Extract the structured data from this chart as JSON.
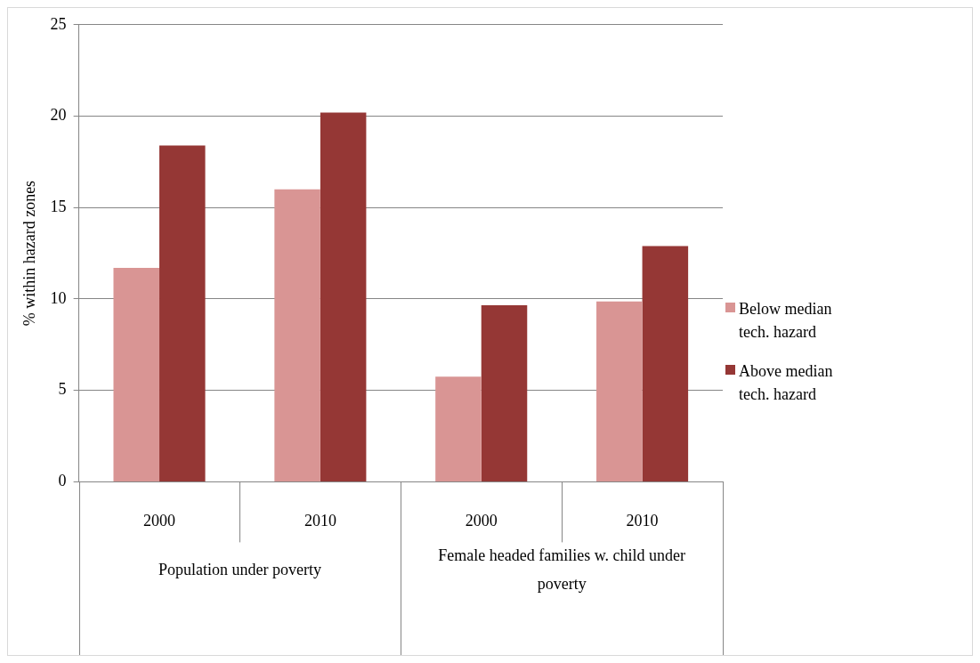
{
  "chart_data": {
    "type": "bar",
    "ylabel": "% within hazard zones",
    "categories": [
      "2000",
      "2010",
      "2000",
      "2010"
    ],
    "annotations": [
      "Population under poverty",
      "Female headed families w. child under poverty"
    ],
    "series": [
      {
        "name": "Below median tech. hazard",
        "color": "#d99594",
        "values": [
          11.7,
          16.0,
          5.75,
          9.86
        ]
      },
      {
        "name": "Above median tech. hazard",
        "color": "#953735",
        "values": [
          18.4,
          20.2,
          9.66,
          12.9
        ]
      }
    ],
    "ylim": [
      0,
      25
    ],
    "yticks": [
      0,
      5,
      10,
      15,
      20,
      25
    ],
    "grid": "y",
    "legend": "right"
  }
}
